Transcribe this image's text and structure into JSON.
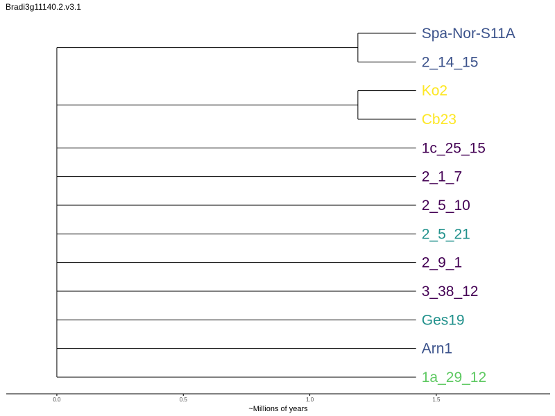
{
  "chart_data": {
    "type": "dendrogram",
    "title": "Bradi3g11140.2.v3.1",
    "xlabel": "~Millions of years",
    "xlim": [
      -0.2,
      1.95
    ],
    "xticks": [
      0.0,
      0.5,
      1.0,
      1.5
    ],
    "xtick_labels": [
      "0.0",
      "0.5",
      "1.0",
      "1.5"
    ],
    "leaf_x": 1.42,
    "root_x": 0.0,
    "colors": {
      "navy": "#3b528b",
      "yellow": "#fde725",
      "purple": "#440154",
      "teal": "#21918c",
      "green": "#5ec962"
    },
    "leaves": [
      {
        "label": "Spa-Nor-S11A",
        "color": "#3b528b"
      },
      {
        "label": "2_14_15",
        "color": "#3b528b"
      },
      {
        "label": "Ko2",
        "color": "#fde725"
      },
      {
        "label": "Cb23",
        "color": "#fde725"
      },
      {
        "label": "1c_25_15",
        "color": "#440154"
      },
      {
        "label": "2_1_7",
        "color": "#440154"
      },
      {
        "label": "2_5_10",
        "color": "#440154"
      },
      {
        "label": "2_5_21",
        "color": "#21918c"
      },
      {
        "label": "2_9_1",
        "color": "#440154"
      },
      {
        "label": "3_38_12",
        "color": "#440154"
      },
      {
        "label": "Ges19",
        "color": "#21918c"
      },
      {
        "label": "Arn1",
        "color": "#3b528b"
      },
      {
        "label": "1a_29_12",
        "color": "#5ec962"
      }
    ],
    "clades": [
      {
        "leaves": [
          0,
          1
        ],
        "node_x": 1.19
      },
      {
        "leaves": [
          2,
          3
        ],
        "node_x": 1.19
      }
    ]
  }
}
